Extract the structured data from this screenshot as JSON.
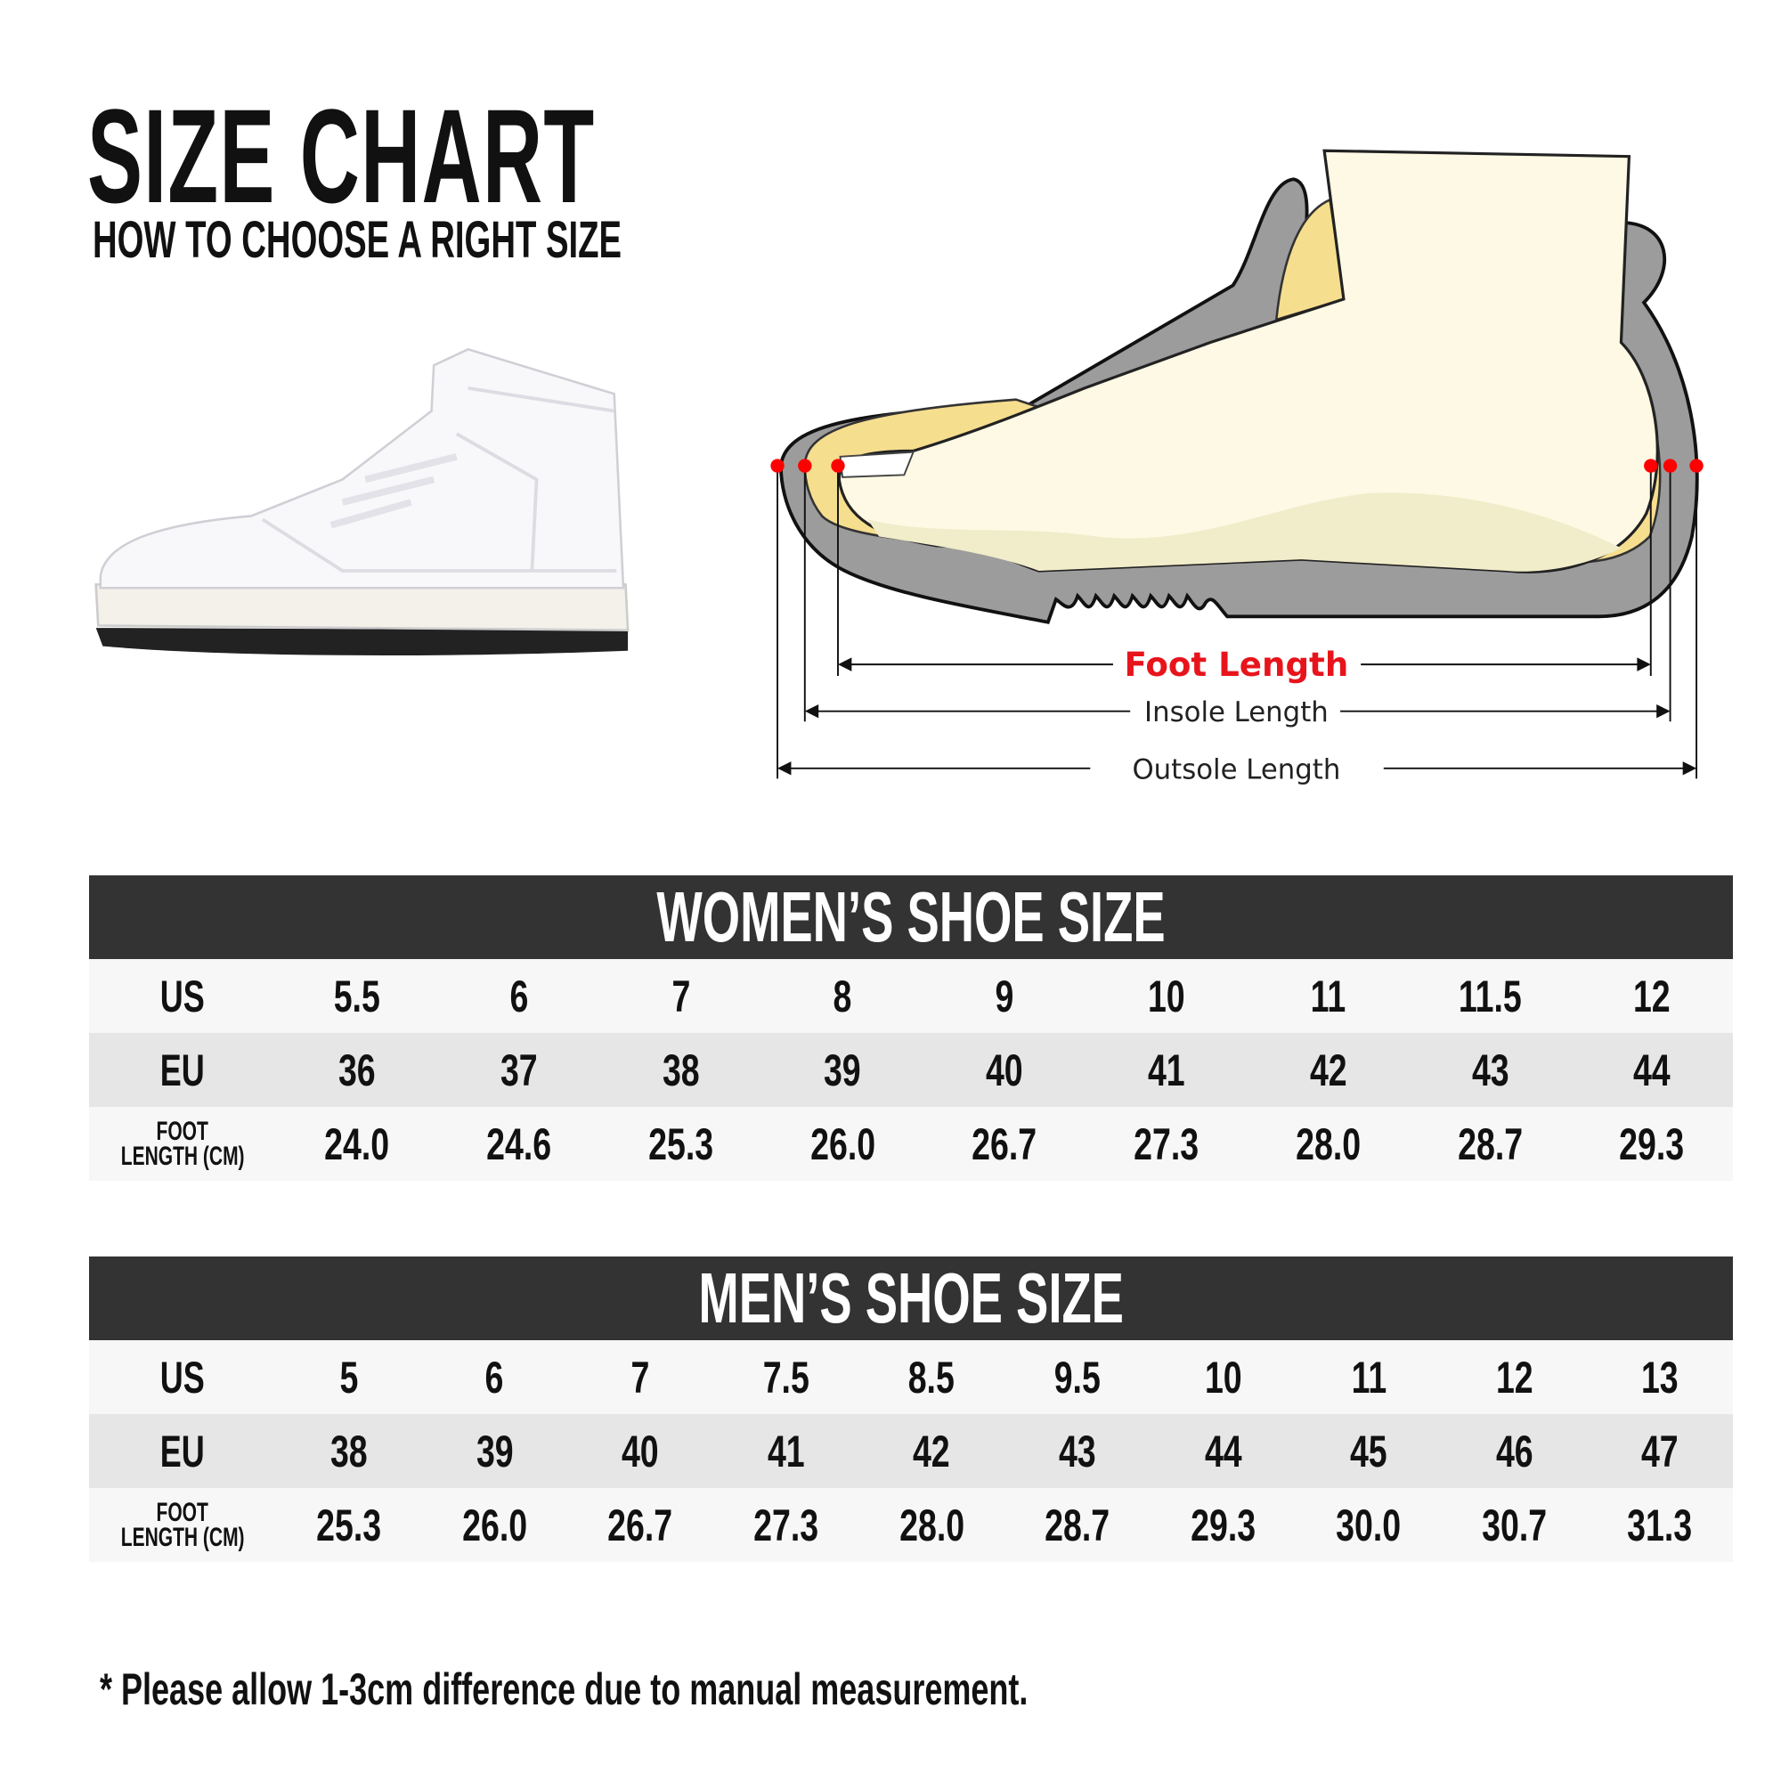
{
  "header": {
    "title": "SIZE CHART",
    "subtitle": "HOW TO CHOOSE A RIGHT SIZE"
  },
  "diagram": {
    "foot_length": "Foot Length",
    "insole_length": "Insole Length",
    "outsole_length": "Outsole Length",
    "colors": {
      "foot_length": "#e8141b",
      "marker": "#ff0000",
      "sole": "#9c9c9c",
      "insole": "#f6de8f",
      "foot": "#fdf9e4"
    }
  },
  "women": {
    "title": "WOMEN’S SHOE SIZE",
    "us_label": "US",
    "eu_label": "EU",
    "foot_label_1": "FOOT",
    "foot_label_2": "LENGTH (CM)",
    "us": [
      "5.5",
      "6",
      "7",
      "8",
      "9",
      "10",
      "11",
      "11.5",
      "12"
    ],
    "eu": [
      "36",
      "37",
      "38",
      "39",
      "40",
      "41",
      "42",
      "43",
      "44"
    ],
    "foot": [
      "24.0",
      "24.6",
      "25.3",
      "26.0",
      "26.7",
      "27.3",
      "28.0",
      "28.7",
      "29.3"
    ]
  },
  "men": {
    "title": "MEN’S SHOE SIZE",
    "us_label": "US",
    "eu_label": "EU",
    "foot_label_1": "FOOT",
    "foot_label_2": "LENGTH (CM)",
    "us": [
      "5",
      "6",
      "7",
      "7.5",
      "8.5",
      "9.5",
      "10",
      "11",
      "12",
      "13"
    ],
    "eu": [
      "38",
      "39",
      "40",
      "41",
      "42",
      "43",
      "44",
      "45",
      "46",
      "47"
    ],
    "foot": [
      "25.3",
      "26.0",
      "26.7",
      "27.3",
      "28.0",
      "28.7",
      "29.3",
      "30.0",
      "30.7",
      "31.3"
    ]
  },
  "footnote": "* Please allow 1-3cm difference due to manual measurement."
}
